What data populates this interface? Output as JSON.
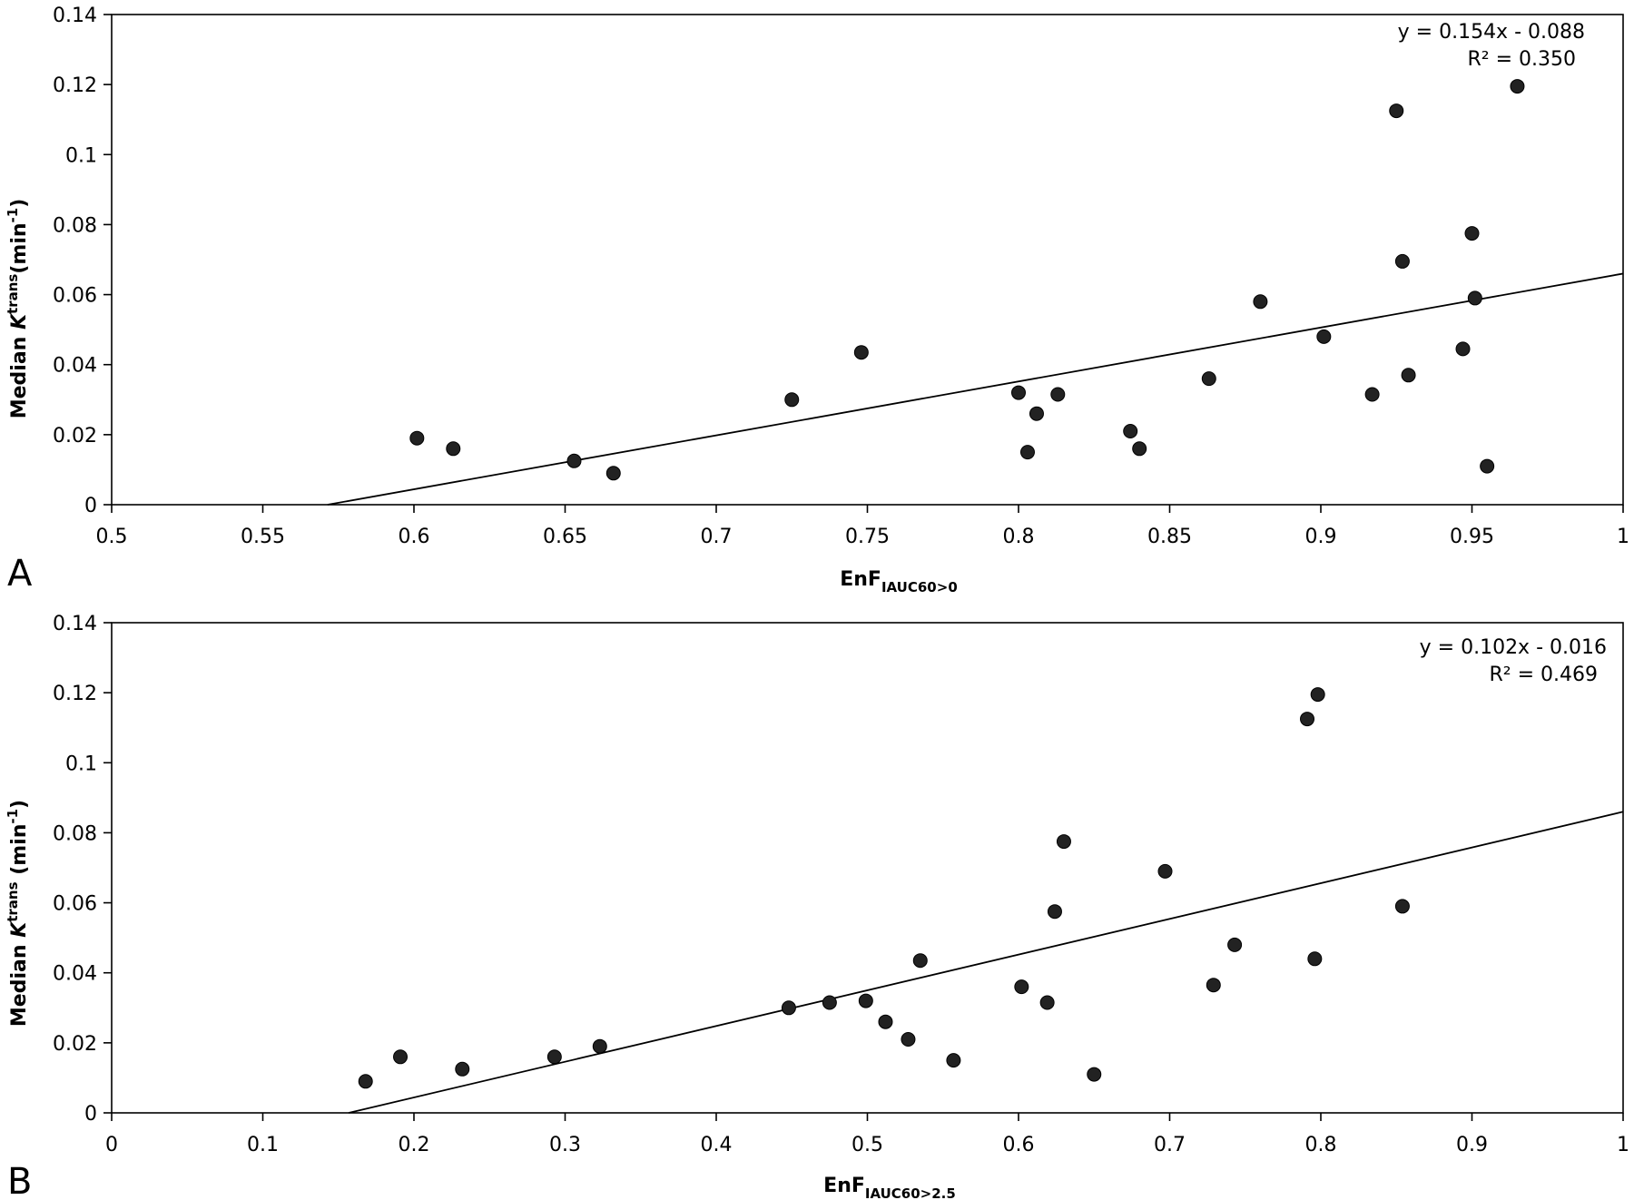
{
  "chart_data": [
    {
      "type": "scatter",
      "panel": "A",
      "xlabel": "EnF",
      "xlabel_sub": "IAUC60>0",
      "ylabel_pre": "Median ",
      "ylabel_k": "K",
      "ylabel_sup": "trans",
      "ylabel_post": "(min",
      "ylabel_post_sup": "-1",
      "ylabel_end": ")",
      "xlim": [
        0.5,
        1
      ],
      "ylim": [
        0,
        0.14
      ],
      "xticks": [
        "0.5",
        "0.55",
        "0.6",
        "0.65",
        "0.7",
        "0.75",
        "0.8",
        "0.85",
        "0.9",
        "0.95",
        "1"
      ],
      "yticks": [
        "0",
        "0.02",
        "0.04",
        "0.06",
        "0.08",
        "0.1",
        "0.12",
        "0.14"
      ],
      "equation": "y = 0.154x - 0.088",
      "r2": "R² = 0.350",
      "trendline": {
        "slope": 0.154,
        "intercept": -0.088
      },
      "grid": false,
      "points": [
        {
          "x": 0.601,
          "y": 0.019
        },
        {
          "x": 0.613,
          "y": 0.016
        },
        {
          "x": 0.653,
          "y": 0.0125
        },
        {
          "x": 0.666,
          "y": 0.009
        },
        {
          "x": 0.725,
          "y": 0.03
        },
        {
          "x": 0.748,
          "y": 0.0435
        },
        {
          "x": 0.8,
          "y": 0.032
        },
        {
          "x": 0.803,
          "y": 0.015
        },
        {
          "x": 0.806,
          "y": 0.026
        },
        {
          "x": 0.813,
          "y": 0.0315
        },
        {
          "x": 0.837,
          "y": 0.021
        },
        {
          "x": 0.84,
          "y": 0.016
        },
        {
          "x": 0.863,
          "y": 0.036
        },
        {
          "x": 0.88,
          "y": 0.058
        },
        {
          "x": 0.901,
          "y": 0.048
        },
        {
          "x": 0.917,
          "y": 0.0315
        },
        {
          "x": 0.925,
          "y": 0.1125
        },
        {
          "x": 0.927,
          "y": 0.0695
        },
        {
          "x": 0.929,
          "y": 0.037
        },
        {
          "x": 0.947,
          "y": 0.0445
        },
        {
          "x": 0.95,
          "y": 0.0775
        },
        {
          "x": 0.951,
          "y": 0.059
        },
        {
          "x": 0.955,
          "y": 0.011
        },
        {
          "x": 0.965,
          "y": 0.1195
        }
      ]
    },
    {
      "type": "scatter",
      "panel": "B",
      "xlabel": "EnF",
      "xlabel_sub": "IAUC60>2.5",
      "ylabel_pre": "Median ",
      "ylabel_k": "K",
      "ylabel_sup": "trans",
      "ylabel_post": " (min",
      "ylabel_post_sup": "-1",
      "ylabel_end": ")",
      "xlim": [
        0,
        1
      ],
      "ylim": [
        0,
        0.14
      ],
      "xticks": [
        "0",
        "0.1",
        "0.2",
        "0.3",
        "0.4",
        "0.5",
        "0.6",
        "0.7",
        "0.8",
        "0.9",
        "1"
      ],
      "yticks": [
        "0",
        "0.02",
        "0.04",
        "0.06",
        "0.08",
        "0.1",
        "0.12",
        "0.14"
      ],
      "equation": "y = 0.102x - 0.016",
      "r2": "R² = 0.469",
      "trendline": {
        "slope": 0.102,
        "intercept": -0.016
      },
      "grid": false,
      "points": [
        {
          "x": 0.168,
          "y": 0.009
        },
        {
          "x": 0.191,
          "y": 0.016
        },
        {
          "x": 0.232,
          "y": 0.0125
        },
        {
          "x": 0.293,
          "y": 0.016
        },
        {
          "x": 0.323,
          "y": 0.019
        },
        {
          "x": 0.448,
          "y": 0.03
        },
        {
          "x": 0.475,
          "y": 0.0315
        },
        {
          "x": 0.499,
          "y": 0.032
        },
        {
          "x": 0.512,
          "y": 0.026
        },
        {
          "x": 0.527,
          "y": 0.021
        },
        {
          "x": 0.535,
          "y": 0.0435
        },
        {
          "x": 0.557,
          "y": 0.015
        },
        {
          "x": 0.602,
          "y": 0.036
        },
        {
          "x": 0.619,
          "y": 0.0315
        },
        {
          "x": 0.624,
          "y": 0.0575
        },
        {
          "x": 0.63,
          "y": 0.0775
        },
        {
          "x": 0.65,
          "y": 0.011
        },
        {
          "x": 0.697,
          "y": 0.069
        },
        {
          "x": 0.729,
          "y": 0.0365
        },
        {
          "x": 0.743,
          "y": 0.048
        },
        {
          "x": 0.791,
          "y": 0.1125
        },
        {
          "x": 0.796,
          "y": 0.044
        },
        {
          "x": 0.798,
          "y": 0.1195
        },
        {
          "x": 0.854,
          "y": 0.059
        }
      ]
    }
  ]
}
